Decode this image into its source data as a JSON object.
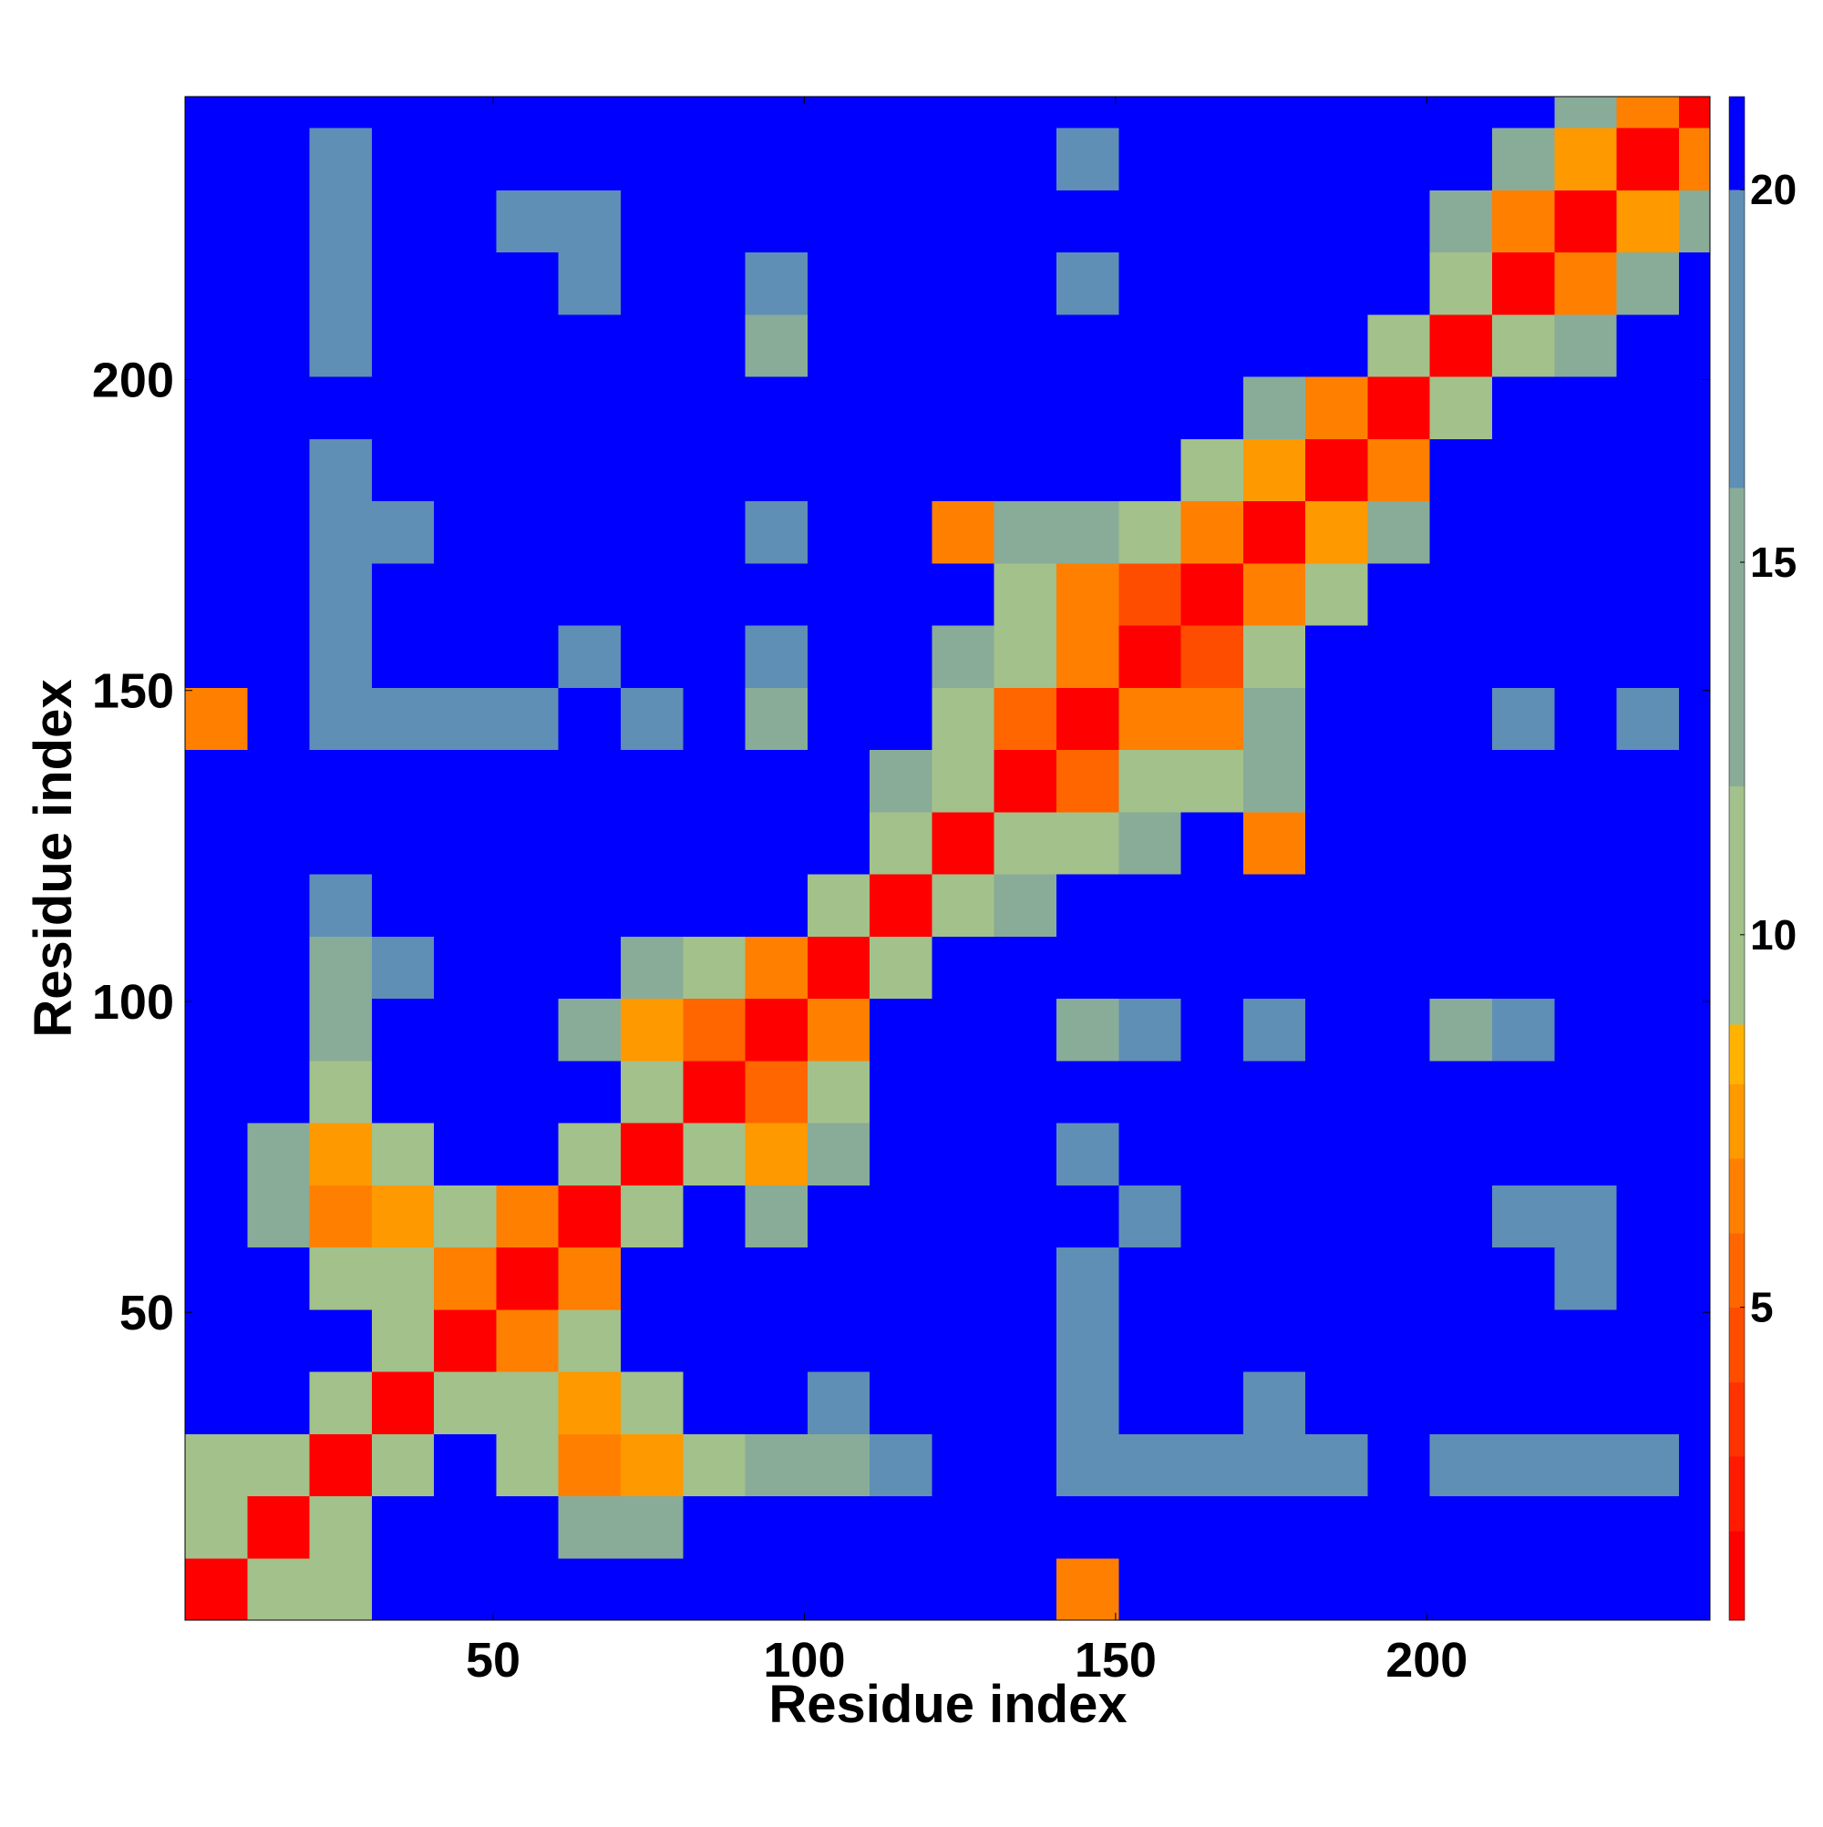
{
  "chart_data": {
    "type": "heatmap",
    "x_label": "Residue index",
    "y_label": "Residue index",
    "xlim": [
      0.5,
      245.5
    ],
    "ylim": [
      0.5,
      245.5
    ],
    "xticks": [
      50,
      100,
      150,
      200
    ],
    "yticks": [
      50,
      100,
      150,
      200
    ],
    "xbins": [
      0.5,
      10.5,
      20.5,
      30.5,
      40.5,
      50.5,
      60.5,
      70.5,
      80.5,
      90.5,
      100.5,
      110.5,
      120.5,
      130.5,
      140.5,
      150.5,
      160.5,
      170.5,
      180.5,
      190.5,
      200.5,
      210.5,
      220.5,
      230.5,
      240.5,
      245.5
    ],
    "ybins": [
      0.5,
      10.5,
      20.5,
      30.5,
      40.5,
      50.5,
      60.5,
      70.5,
      80.5,
      90.5,
      100.5,
      110.5,
      120.5,
      130.5,
      140.5,
      150.5,
      160.5,
      170.5,
      180.5,
      190.5,
      200.5,
      210.5,
      220.5,
      230.5,
      240.5,
      245.5
    ],
    "zlim": [
      0.8,
      21.25
    ],
    "colorbar_ticks": [
      5,
      10,
      15,
      20
    ],
    "colorscale": [
      {
        "max": 2,
        "color": "#ff0000"
      },
      {
        "max": 3,
        "color": "#ff1a00"
      },
      {
        "max": 4,
        "color": "#ff3300"
      },
      {
        "max": 5,
        "color": "#ff4d00"
      },
      {
        "max": 6,
        "color": "#ff6600"
      },
      {
        "max": 7,
        "color": "#ff8000"
      },
      {
        "max": 8,
        "color": "#ff9900"
      },
      {
        "max": 8.8,
        "color": "#ffb300"
      },
      {
        "max": 12,
        "color": "#a3c18a"
      },
      {
        "max": 16,
        "color": "#88ac98"
      },
      {
        "max": 20,
        "color": "#5f8fb5"
      },
      {
        "max": 21.25,
        "color": "#0000ff"
      }
    ],
    "z": [
      [
        2,
        11,
        12,
        21,
        21,
        21,
        21,
        21,
        21,
        21,
        21,
        21,
        21,
        21,
        7,
        21,
        21,
        21,
        21,
        21,
        21,
        21,
        21,
        21,
        21
      ],
      [
        11,
        2,
        11,
        21,
        21,
        21,
        16,
        14,
        21,
        21,
        21,
        21,
        21,
        21,
        21,
        21,
        21,
        21,
        21,
        21,
        21,
        21,
        21,
        21,
        21
      ],
      [
        12,
        11,
        2,
        11,
        21,
        12,
        7,
        8,
        12,
        15,
        15,
        18,
        21,
        21,
        18,
        18,
        18,
        18,
        18,
        21,
        18,
        18,
        18,
        18,
        21
      ],
      [
        21,
        21,
        11,
        2,
        12,
        12,
        8,
        12,
        21,
        21,
        18,
        21,
        21,
        21,
        18,
        21,
        21,
        18,
        21,
        21,
        21,
        21,
        21,
        21,
        21
      ],
      [
        21,
        21,
        21,
        12,
        2,
        7,
        12,
        21,
        21,
        21,
        21,
        21,
        21,
        21,
        18,
        21,
        21,
        21,
        21,
        21,
        21,
        21,
        21,
        21,
        21
      ],
      [
        21,
        21,
        12,
        12,
        7,
        2,
        7,
        21,
        21,
        21,
        21,
        21,
        21,
        21,
        18,
        21,
        21,
        21,
        21,
        21,
        21,
        21,
        18,
        21,
        21
      ],
      [
        21,
        16,
        7,
        8,
        12,
        7,
        2,
        12,
        21,
        14,
        21,
        21,
        21,
        21,
        21,
        18,
        21,
        21,
        21,
        21,
        21,
        18,
        18,
        21,
        21
      ],
      [
        21,
        14,
        8,
        12,
        21,
        21,
        12,
        2,
        10,
        8,
        14,
        21,
        21,
        21,
        18,
        21,
        21,
        21,
        21,
        21,
        21,
        21,
        21,
        21,
        21
      ],
      [
        21,
        21,
        12,
        21,
        21,
        21,
        21,
        10,
        2,
        6,
        10,
        21,
        21,
        21,
        21,
        21,
        21,
        21,
        21,
        21,
        21,
        21,
        21,
        21,
        21
      ],
      [
        21,
        21,
        15,
        21,
        21,
        21,
        14,
        8,
        6,
        2,
        7,
        21,
        21,
        21,
        14,
        18,
        21,
        18,
        21,
        21,
        15,
        18,
        21,
        21,
        21
      ],
      [
        21,
        21,
        15,
        18,
        21,
        21,
        21,
        14,
        10,
        7,
        2,
        11,
        21,
        21,
        21,
        21,
        21,
        21,
        21,
        21,
        21,
        21,
        21,
        21,
        21
      ],
      [
        21,
        21,
        18,
        21,
        21,
        21,
        21,
        21,
        21,
        21,
        11,
        2,
        10,
        14,
        21,
        21,
        21,
        21,
        21,
        21,
        21,
        21,
        21,
        21,
        21
      ],
      [
        21,
        21,
        21,
        21,
        21,
        21,
        21,
        21,
        21,
        21,
        21,
        10,
        2,
        10,
        12,
        16,
        21,
        7,
        21,
        21,
        21,
        21,
        21,
        21,
        21
      ],
      [
        21,
        21,
        21,
        21,
        21,
        21,
        21,
        21,
        21,
        21,
        21,
        14,
        10,
        2,
        6,
        12,
        12,
        16,
        21,
        21,
        21,
        21,
        21,
        21,
        21
      ],
      [
        7,
        21,
        18,
        18,
        18,
        18,
        21,
        18,
        21,
        14,
        21,
        21,
        12,
        6,
        2,
        7,
        7,
        14,
        21,
        21,
        21,
        18,
        21,
        18,
        21
      ],
      [
        21,
        21,
        18,
        21,
        21,
        21,
        18,
        21,
        21,
        18,
        21,
        21,
        16,
        12,
        7,
        2,
        5,
        12,
        21,
        21,
        21,
        21,
        21,
        21,
        21
      ],
      [
        21,
        21,
        18,
        21,
        21,
        21,
        21,
        21,
        21,
        21,
        21,
        21,
        21,
        12,
        7,
        5,
        2,
        7,
        12,
        21,
        21,
        21,
        21,
        21,
        21
      ],
      [
        21,
        21,
        18,
        18,
        21,
        21,
        21,
        21,
        21,
        18,
        21,
        21,
        7,
        16,
        14,
        12,
        7,
        2,
        8,
        14,
        21,
        21,
        21,
        21,
        21
      ],
      [
        21,
        21,
        18,
        21,
        21,
        21,
        21,
        21,
        21,
        21,
        21,
        21,
        21,
        21,
        21,
        21,
        12,
        8,
        2,
        7,
        21,
        21,
        21,
        21,
        21
      ],
      [
        21,
        21,
        21,
        21,
        21,
        21,
        21,
        21,
        21,
        21,
        21,
        21,
        21,
        21,
        21,
        21,
        21,
        14,
        7,
        2,
        10,
        21,
        21,
        21,
        21
      ],
      [
        21,
        21,
        18,
        21,
        21,
        21,
        21,
        21,
        21,
        15,
        21,
        21,
        21,
        21,
        21,
        21,
        21,
        21,
        21,
        10,
        2,
        10,
        16,
        21,
        21
      ],
      [
        21,
        21,
        18,
        21,
        21,
        21,
        18,
        21,
        21,
        18,
        21,
        21,
        21,
        21,
        18,
        21,
        21,
        21,
        21,
        21,
        10,
        2,
        7,
        14,
        21
      ],
      [
        21,
        21,
        18,
        21,
        21,
        18,
        18,
        21,
        21,
        21,
        21,
        21,
        21,
        21,
        21,
        21,
        21,
        21,
        21,
        21,
        16,
        7,
        2,
        8,
        15
      ],
      [
        21,
        21,
        18,
        21,
        21,
        21,
        21,
        21,
        21,
        21,
        21,
        21,
        21,
        21,
        18,
        21,
        21,
        21,
        21,
        21,
        21,
        14,
        8,
        2,
        7
      ],
      [
        21,
        21,
        21,
        21,
        21,
        21,
        21,
        21,
        21,
        21,
        21,
        21,
        21,
        21,
        21,
        21,
        21,
        21,
        21,
        21,
        21,
        21,
        15,
        7,
        2
      ]
    ]
  }
}
